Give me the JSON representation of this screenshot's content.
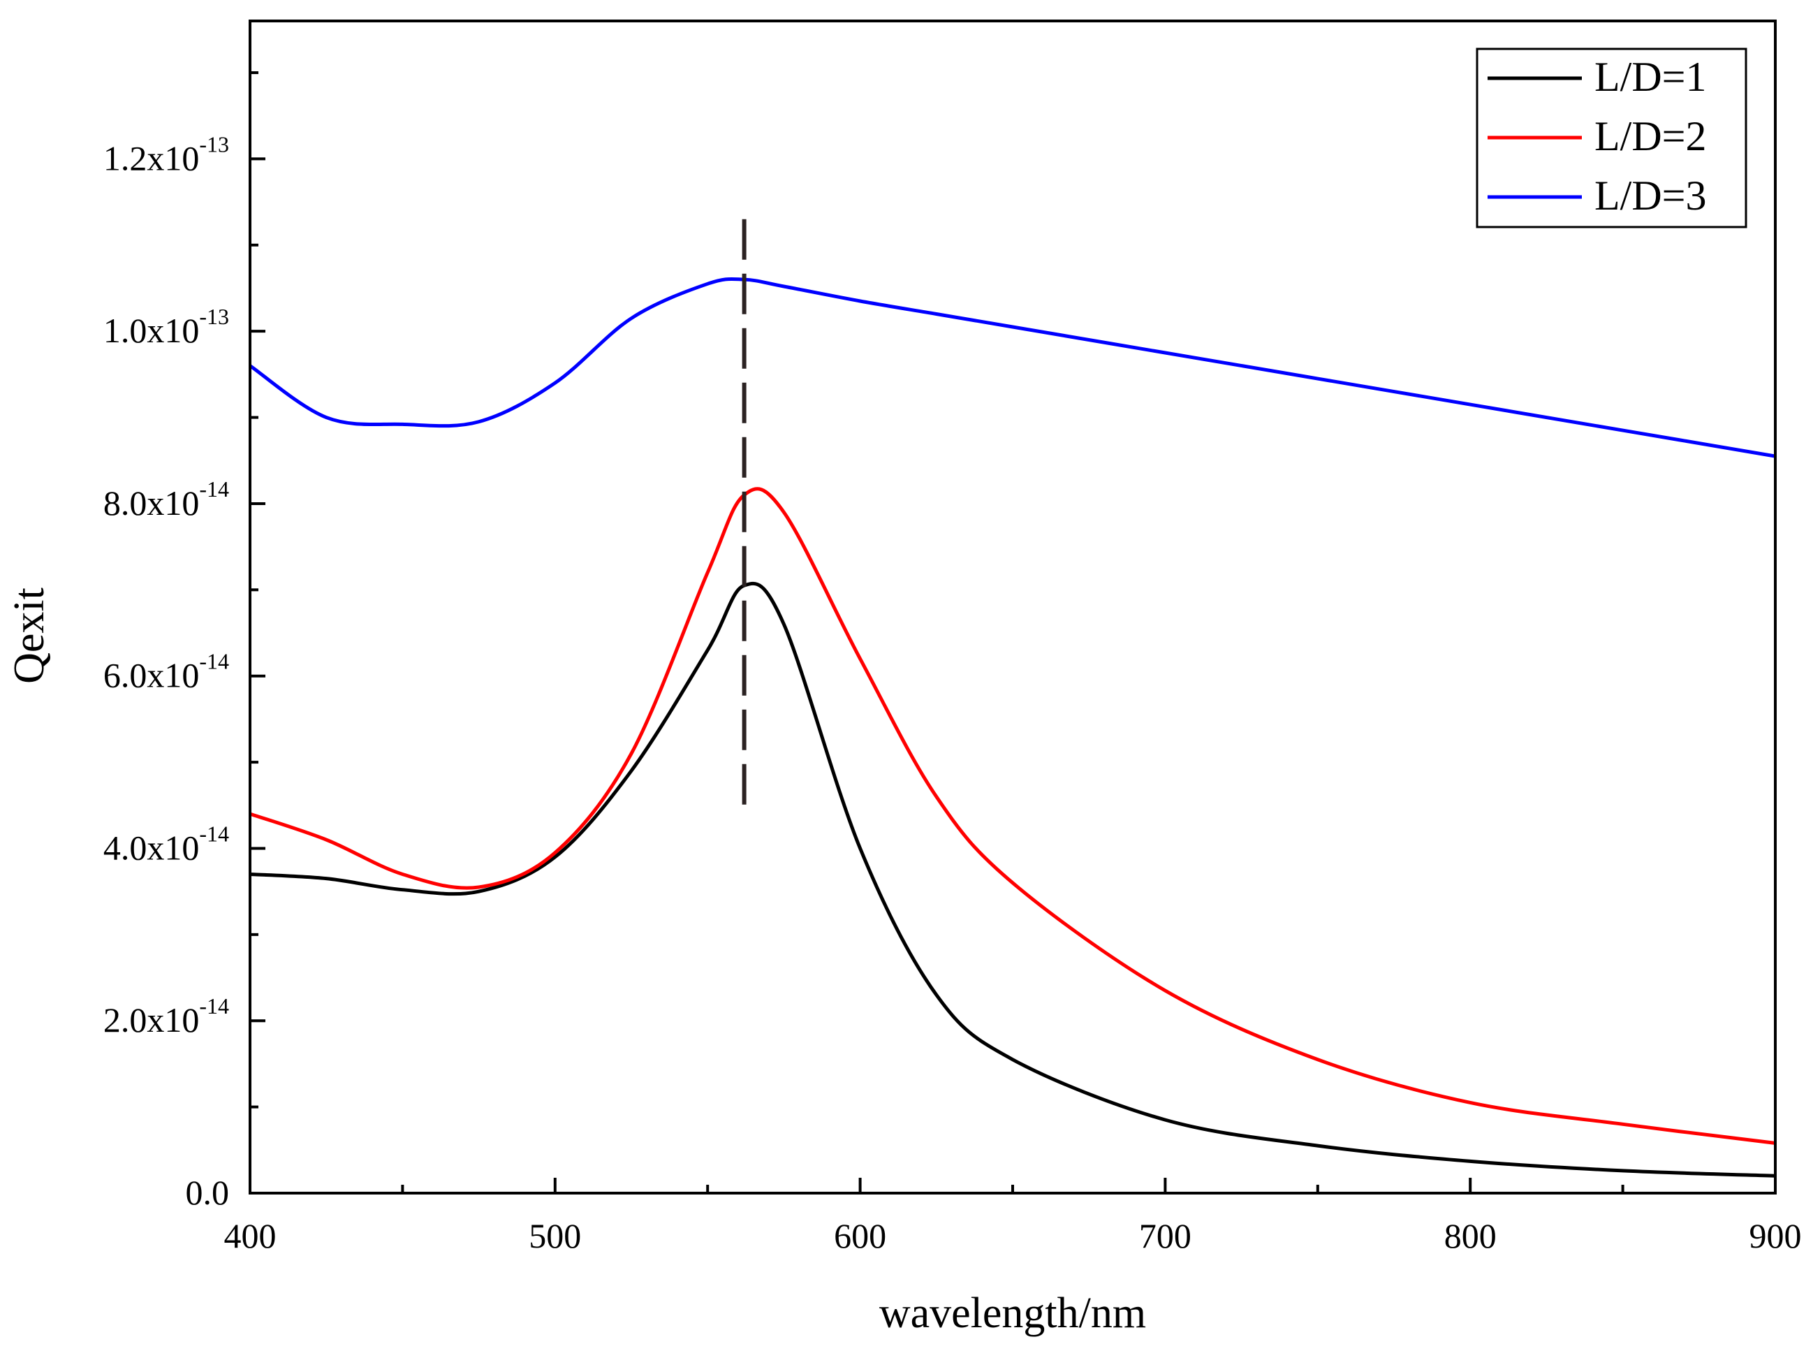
{
  "chart_data": {
    "type": "line",
    "title": "",
    "xlabel": "wavelength/nm",
    "ylabel": "Qexit",
    "xlim": [
      400,
      900
    ],
    "ylim": [
      0,
      1.36e-13
    ],
    "x_ticks": [
      "400",
      "500",
      "600",
      "700",
      "800",
      "900"
    ],
    "y_ticks": [
      {
        "mantissa": "0.0",
        "exponent": ""
      },
      {
        "mantissa": "2.0x10",
        "exponent": "-14"
      },
      {
        "mantissa": "4.0x10",
        "exponent": "-14"
      },
      {
        "mantissa": "6.0x10",
        "exponent": "-14"
      },
      {
        "mantissa": "8.0x10",
        "exponent": "-14"
      },
      {
        "mantissa": "1.0x10",
        "exponent": "-13"
      },
      {
        "mantissa": "1.2x10",
        "exponent": "-13"
      }
    ],
    "legend_position": "top-right",
    "annotation": {
      "type": "dashed-vertical-line",
      "x": 562,
      "y_range": [
        4.4e-14,
        1.13e-13
      ]
    },
    "x": [
      400,
      425,
      450,
      475,
      500,
      525,
      550,
      562,
      575,
      600,
      625,
      650,
      700,
      750,
      800,
      850,
      900
    ],
    "series": [
      {
        "name": "L/D=1",
        "color": "#000000",
        "values": [
          3.7e-14,
          3.65e-14,
          3.52e-14,
          3.5e-14,
          3.9e-14,
          4.9e-14,
          6.3e-14,
          7.05e-14,
          6.6e-14,
          4e-14,
          2.3e-14,
          1.55e-14,
          8.5e-15,
          5.5e-15,
          3.7e-15,
          2.6e-15,
          2e-15
        ]
      },
      {
        "name": "L/D=2",
        "color": "#ff0000",
        "values": [
          4.4e-14,
          4.1e-14,
          3.7e-14,
          3.55e-14,
          3.95e-14,
          5.1e-14,
          7.2e-14,
          8.1e-14,
          7.9e-14,
          6.2e-14,
          4.6e-14,
          3.6e-14,
          2.35e-14,
          1.55e-14,
          1.05e-14,
          8e-15,
          5.8e-15
        ]
      },
      {
        "name": "L/D=3",
        "color": "#0000ff",
        "values": [
          9.6e-14,
          9e-14,
          8.92e-14,
          8.95e-14,
          9.4e-14,
          1.015e-13,
          1.055e-13,
          1.06e-13,
          1.052e-13,
          1.035e-13,
          1.02e-13,
          1.005e-13,
          9.75e-14,
          9.45e-14,
          9.15e-14,
          8.85e-14,
          8.55e-14
        ]
      }
    ]
  }
}
